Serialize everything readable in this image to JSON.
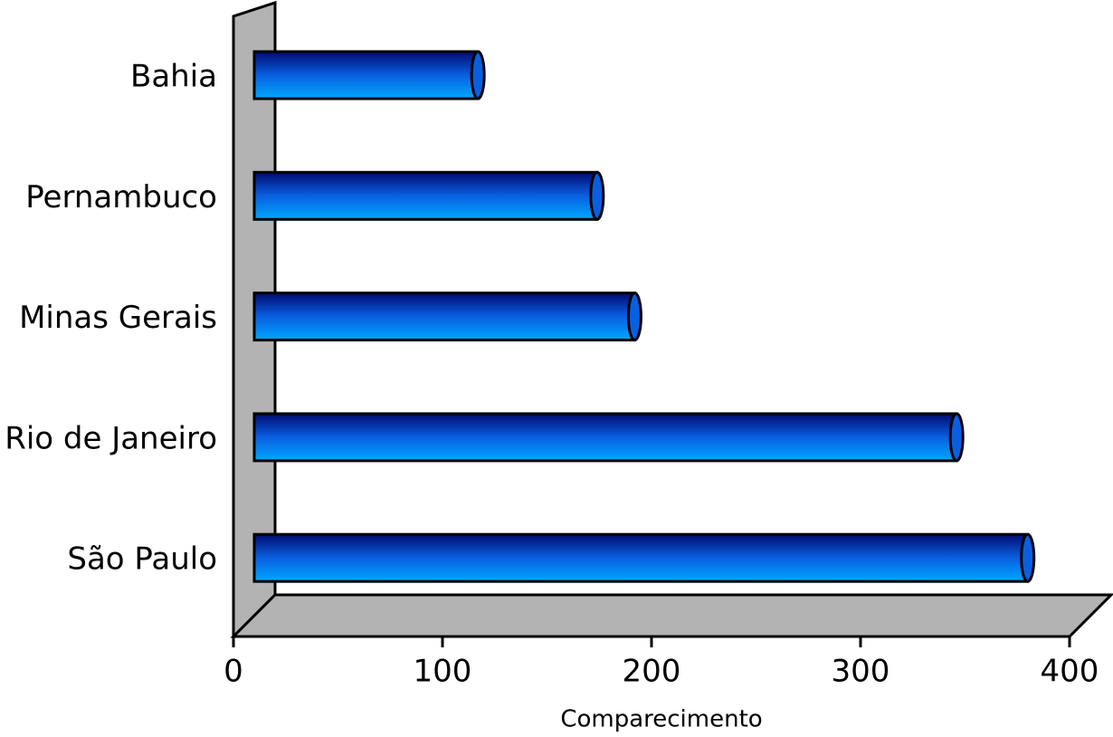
{
  "chart_data": {
    "type": "bar",
    "orientation": "horizontal",
    "categories": [
      "Bahia",
      "Pernambuco",
      "Minas Gerais",
      "Rio de Janeiro",
      "São Paulo"
    ],
    "values": [
      107,
      164,
      182,
      336,
      370
    ],
    "color": "#0a5fe0",
    "xlabel": "Comparecimento",
    "xlim": [
      0,
      400
    ],
    "xticks": [
      0,
      100,
      200,
      300,
      400
    ]
  }
}
